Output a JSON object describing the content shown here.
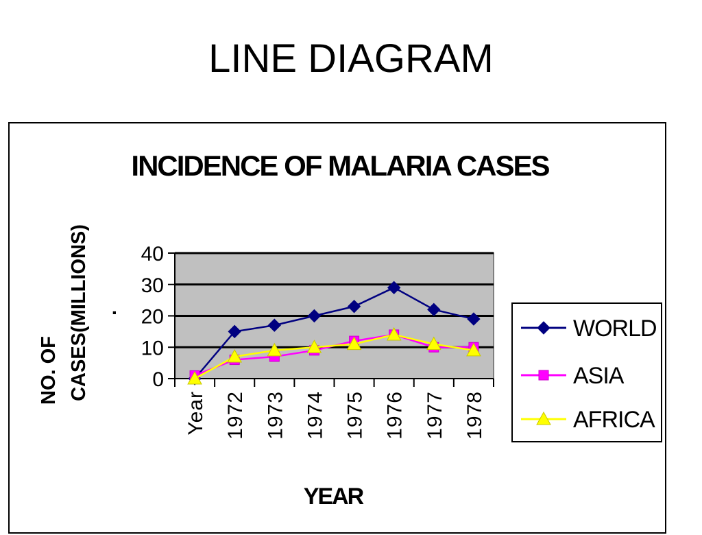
{
  "slide": {
    "title": "LINE DIAGRAM"
  },
  "chart_data": {
    "type": "line",
    "title": "INCIDENCE OF MALARIA CASES",
    "xlabel": "YEAR",
    "ylabel_lines": [
      "NO. OF",
      "CASES(MILLIONS)"
    ],
    "ylabel_suffix": ".",
    "categories": [
      "Year",
      "1972",
      "1973",
      "1974",
      "1975",
      "1976",
      "1977",
      "1978"
    ],
    "ylim": [
      0,
      40
    ],
    "yticks": [
      "0",
      "10",
      "20",
      "30",
      "40"
    ],
    "grid": true,
    "legend": "right",
    "plot_background": "#c0c0c0",
    "series": [
      {
        "name": "WORLD",
        "values": [
          0,
          15,
          17,
          20,
          23,
          29,
          22,
          19
        ],
        "color": "#000080",
        "marker": "diamond"
      },
      {
        "name": "ASIA",
        "values": [
          1,
          6,
          7,
          9,
          12,
          14,
          10,
          10
        ],
        "color": "#ff00ff",
        "marker": "square"
      },
      {
        "name": "AFRICA",
        "values": [
          0,
          7,
          9,
          10,
          11,
          14,
          11,
          9
        ],
        "color": "#ffff00",
        "marker": "triangle"
      }
    ]
  }
}
